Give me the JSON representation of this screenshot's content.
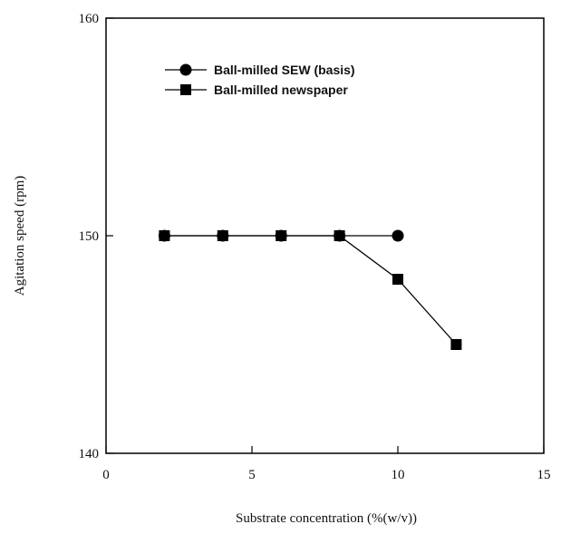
{
  "chart_data": {
    "type": "line",
    "xlabel": "Substrate concentration (%(w/v))",
    "ylabel": "Agitation speed (rpm)",
    "xlim": [
      0,
      15
    ],
    "xticks": [
      0,
      5,
      10,
      15
    ],
    "ylim": [
      140,
      160
    ],
    "yticks": [
      140,
      150,
      160
    ],
    "color": "#000000",
    "series": [
      {
        "name": "Ball-milled SEW (basis)",
        "marker": "circle",
        "x": [
          2,
          4,
          6,
          8,
          10
        ],
        "values": [
          150,
          150,
          150,
          150,
          150
        ]
      },
      {
        "name": "Ball-milled newspaper",
        "marker": "square",
        "x": [
          2,
          4,
          6,
          8,
          10,
          12
        ],
        "values": [
          150,
          150,
          150,
          150,
          148,
          145
        ]
      }
    ]
  }
}
